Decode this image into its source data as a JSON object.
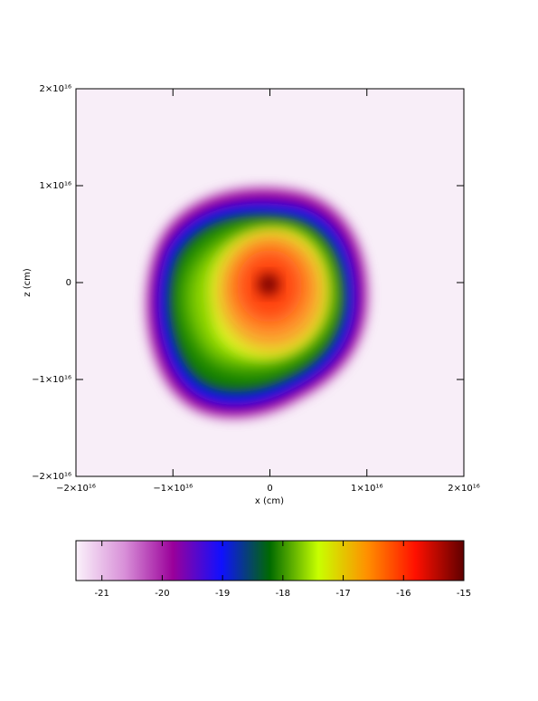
{
  "chart_data": {
    "type": "heatmap",
    "x_label": "x (cm)",
    "y_label": "z (cm)",
    "xlim": [
      -2e+16,
      2e+16
    ],
    "ylim": [
      -2e+16,
      2e+16
    ],
    "xticks": [
      {
        "value": -2e+16,
        "label": "−2×10¹⁶"
      },
      {
        "value": -1e+16,
        "label": "−1×10¹⁶"
      },
      0,
      {
        "value": 1e+16,
        "label": "1×10¹⁶"
      },
      {
        "value": 2e+16,
        "label": "2×10¹⁶"
      }
    ],
    "yticks": [
      {
        "value": -2e+16,
        "label": "−2×10¹⁶"
      },
      {
        "value": -1e+16,
        "label": "−1×10¹⁶"
      },
      0,
      {
        "value": 1e+16,
        "label": "1×10¹⁶"
      },
      {
        "value": 2e+16,
        "label": "2×10¹⁶"
      }
    ],
    "colorbar": {
      "lim": [
        -21.43,
        -15
      ],
      "ticks": [
        -21,
        -20,
        -19,
        -18,
        -17,
        -16,
        -15
      ],
      "colormap": [
        "#fbf2fb",
        "#d890d8",
        "#9a009a",
        "#1010ff",
        "#006a00",
        "#c8ff00",
        "#ff9000",
        "#ff1000",
        "#600000"
      ]
    }
  }
}
